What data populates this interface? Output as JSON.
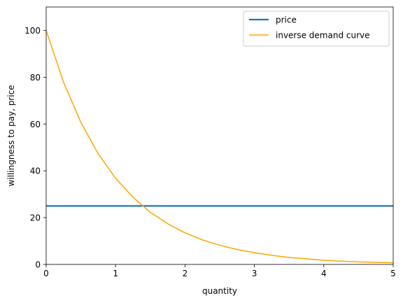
{
  "chart_data": {
    "type": "line",
    "title": "",
    "xlabel": "quantity",
    "ylabel": "willingness to pay, price",
    "xlim": [
      0,
      5
    ],
    "ylim": [
      0,
      110
    ],
    "xticks": [
      0,
      1,
      2,
      3,
      4,
      5
    ],
    "xtick_labels": [
      "0",
      "1",
      "2",
      "3",
      "4",
      "5"
    ],
    "yticks": [
      0,
      20,
      40,
      60,
      80,
      100
    ],
    "ytick_labels": [
      "0",
      "20",
      "40",
      "60",
      "80",
      "100"
    ],
    "grid": false,
    "legend": {
      "placement": "upper right"
    },
    "series": [
      {
        "name": "price",
        "color": "#1f77b4",
        "style": "solid-thick",
        "x": [
          0,
          5
        ],
        "y": [
          25,
          25
        ]
      },
      {
        "name": "inverse demand curve",
        "color": "#ffa500",
        "style": "solid",
        "x": [
          0,
          0.25,
          0.5,
          0.75,
          1,
          1.25,
          1.5,
          1.75,
          2,
          2.25,
          2.5,
          2.75,
          3,
          3.25,
          3.5,
          3.75,
          4,
          4.25,
          4.5,
          4.75,
          5
        ],
        "y": [
          100,
          77.9,
          60.7,
          47.2,
          36.8,
          28.7,
          22.3,
          17.4,
          13.5,
          10.5,
          8.2,
          6.4,
          5.0,
          3.9,
          3.0,
          2.4,
          1.8,
          1.4,
          1.1,
          0.9,
          0.7
        ]
      }
    ]
  }
}
